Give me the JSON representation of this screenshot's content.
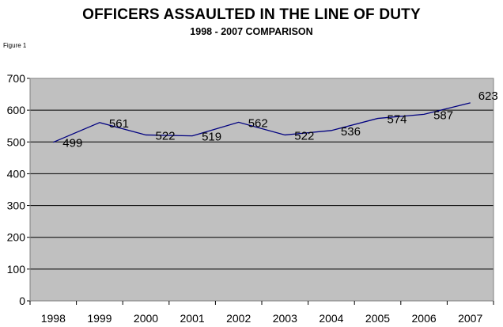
{
  "title": "OFFICERS ASSAULTED IN THE LINE OF DUTY",
  "subtitle": "1998 - 2007 COMPARISON",
  "figure_label": "Figure 1",
  "colors": {
    "plot_background": "#c0c0c0",
    "line": "#000080",
    "gridline": "#000000"
  },
  "chart_data": {
    "type": "line",
    "title": "OFFICERS ASSAULTED IN THE LINE OF DUTY",
    "subtitle": "1998 - 2007 COMPARISON",
    "categories": [
      "1998",
      "1999",
      "2000",
      "2001",
      "2002",
      "2003",
      "2004",
      "2005",
      "2006",
      "2007"
    ],
    "series": [
      {
        "values": [
          499,
          561,
          522,
          519,
          562,
          522,
          536,
          574,
          587,
          623
        ]
      }
    ],
    "xlabel": "",
    "ylabel": "",
    "ylim": [
      0,
      700
    ],
    "yticks": [
      0,
      100,
      200,
      300,
      400,
      500,
      600,
      700
    ],
    "ytick_labels": [
      "0",
      "100",
      "200",
      "300",
      "400",
      "500",
      "600",
      "700"
    ],
    "grid": true,
    "legend": "none"
  }
}
